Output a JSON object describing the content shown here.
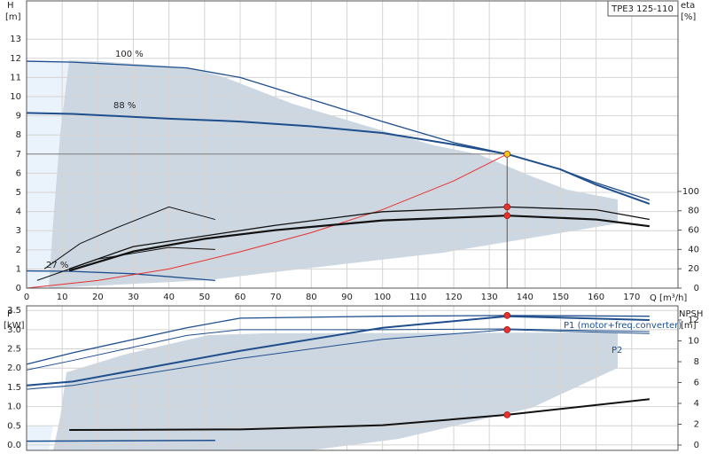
{
  "chart_data": [
    {
      "type": "line",
      "title": "TPE3 125-110",
      "y_label": "H",
      "y_unit": "[m]",
      "y2_label": "eta",
      "y2_unit": "[%]",
      "x_label": "Q [m³/h]",
      "xlim": [
        0,
        183
      ],
      "ylim": [
        0,
        15
      ],
      "y2lim": [
        0,
        297
      ],
      "xticks": [
        0,
        10,
        20,
        30,
        40,
        50,
        60,
        70,
        80,
        90,
        100,
        110,
        120,
        130,
        140,
        150,
        160,
        170
      ],
      "yticks": [
        0,
        1,
        2,
        3,
        4,
        5,
        6,
        7,
        8,
        9,
        10,
        11,
        12,
        13
      ],
      "y2ticks": [
        0,
        20,
        40,
        60,
        80,
        100
      ],
      "grid": true,
      "annotations": [
        "100 %",
        "88 %",
        "27 %"
      ],
      "series": [
        {
          "color": "#7f7f7f",
          "width": 1,
          "x": [
            0,
            135
          ],
          "values": [
            7,
            7
          ]
        },
        {
          "color": "#555555",
          "width": 1,
          "x": [
            135,
            135
          ],
          "values": [
            7,
            0
          ]
        },
        {
          "color": "#1f4e8c",
          "width": 1.3,
          "x": [
            0,
            13,
            45,
            60,
            80,
            100,
            120,
            135,
            150,
            160,
            175
          ],
          "values": [
            11.85,
            11.8,
            11.5,
            11.0,
            9.85,
            8.7,
            7.6,
            7.0,
            6.2,
            5.5,
            4.6
          ]
        },
        {
          "color": "#1f4e8c",
          "width": 2,
          "x": [
            0,
            13,
            40,
            60,
            80,
            100,
            120,
            135,
            150,
            160,
            175
          ],
          "values": [
            9.15,
            9.1,
            8.85,
            8.7,
            8.45,
            8.1,
            7.5,
            7.0,
            6.2,
            5.4,
            4.4
          ]
        },
        {
          "color": "#1f4e8c",
          "width": 1.3,
          "x": [
            0,
            12,
            30,
            53
          ],
          "values": [
            0.9,
            0.88,
            0.75,
            0.4
          ]
        },
        {
          "color": "#e8312f",
          "width": 1,
          "x": [
            0,
            20,
            40,
            60,
            80,
            100,
            120,
            135
          ],
          "values": [
            0,
            0.4,
            1.0,
            1.9,
            2.9,
            4.1,
            5.6,
            7.0
          ]
        },
        {
          "color": "#111111",
          "width": 1,
          "axis": "y2",
          "x": [
            5,
            15,
            25,
            40,
            53
          ],
          "values": [
            20,
            46,
            62,
            84,
            71
          ]
        },
        {
          "color": "#111111",
          "width": 1,
          "axis": "y2",
          "x": [
            3,
            20,
            40,
            53
          ],
          "values": [
            8,
            30,
            42,
            40
          ]
        },
        {
          "color": "#111111",
          "width": 1.3,
          "axis": "y2",
          "x": [
            12,
            30,
            50,
            70,
            100,
            135,
            160,
            175
          ],
          "values": [
            20,
            43,
            54,
            65,
            79,
            84,
            81,
            71
          ]
        },
        {
          "color": "#111111",
          "width": 2.2,
          "axis": "y2",
          "x": [
            12,
            30,
            50,
            70,
            100,
            135,
            160,
            175
          ],
          "values": [
            18,
            38,
            51,
            60,
            70,
            75,
            71,
            64
          ]
        },
        {
          "color": "#f5c518",
          "marker": true,
          "x": [
            135
          ],
          "values": [
            7
          ]
        },
        {
          "color": "#e8312f",
          "marker": true,
          "axis": "y2",
          "x": [
            135,
            135
          ],
          "values": [
            84,
            75
          ]
        }
      ]
    },
    {
      "type": "line",
      "y_label": "P",
      "y_unit": "[kW]",
      "y2_label": "NPSH",
      "y2_unit": "[m]",
      "xlim": [
        0,
        183
      ],
      "ylim": [
        -0.14,
        3.62
      ],
      "y2lim": [
        -0.51,
        13.36
      ],
      "yticks": [
        {
          "value": 0,
          "label": "0.0"
        },
        0.5,
        {
          "value": 1,
          "label": "1.0"
        },
        1.5,
        {
          "value": 2,
          "label": "2.0"
        },
        2.5,
        {
          "value": 3,
          "label": "3.0"
        },
        3.5
      ],
      "y2ticks": [
        0,
        2,
        4,
        6,
        8,
        10,
        12
      ],
      "grid": true,
      "series": [
        {
          "name": "P1 (motor+freq.converter)",
          "color": "#1f4e8c",
          "width": 1.3,
          "x": [
            0,
            13,
            45,
            60,
            100,
            135,
            175
          ],
          "values": [
            2.1,
            2.4,
            3.05,
            3.3,
            3.35,
            3.37,
            3.35
          ]
        },
        {
          "color": "#1f4e8c",
          "width": 1,
          "x": [
            0,
            13,
            45,
            60,
            100,
            135,
            175
          ],
          "values": [
            1.95,
            2.2,
            2.85,
            3.0,
            3.0,
            3.02,
            2.95
          ]
        },
        {
          "color": "#1f4e8c",
          "width": 2,
          "x": [
            0,
            13,
            60,
            100,
            135,
            175
          ],
          "values": [
            1.55,
            1.65,
            2.45,
            3.05,
            3.35,
            3.25
          ]
        },
        {
          "name": "P2",
          "color": "#1f4e8c",
          "width": 1,
          "x": [
            0,
            13,
            60,
            100,
            135,
            175
          ],
          "values": [
            1.45,
            1.55,
            2.25,
            2.75,
            3.0,
            2.9
          ]
        },
        {
          "color": "#1f4e8c",
          "width": 1.5,
          "x": [
            0,
            53
          ],
          "values": [
            0.1,
            0.12
          ]
        },
        {
          "color": "#111111",
          "width": 2,
          "axis": "y2",
          "x": [
            12,
            60,
            100,
            135,
            175
          ],
          "values": [
            1.45,
            1.5,
            1.9,
            2.9,
            4.4
          ]
        },
        {
          "color": "#e8312f",
          "marker": true,
          "x": [
            135,
            135
          ],
          "values": [
            3.37,
            3.0
          ]
        },
        {
          "color": "#e8312f",
          "marker": true,
          "axis": "y2",
          "x": [
            135
          ],
          "values": [
            2.9
          ]
        }
      ]
    }
  ]
}
